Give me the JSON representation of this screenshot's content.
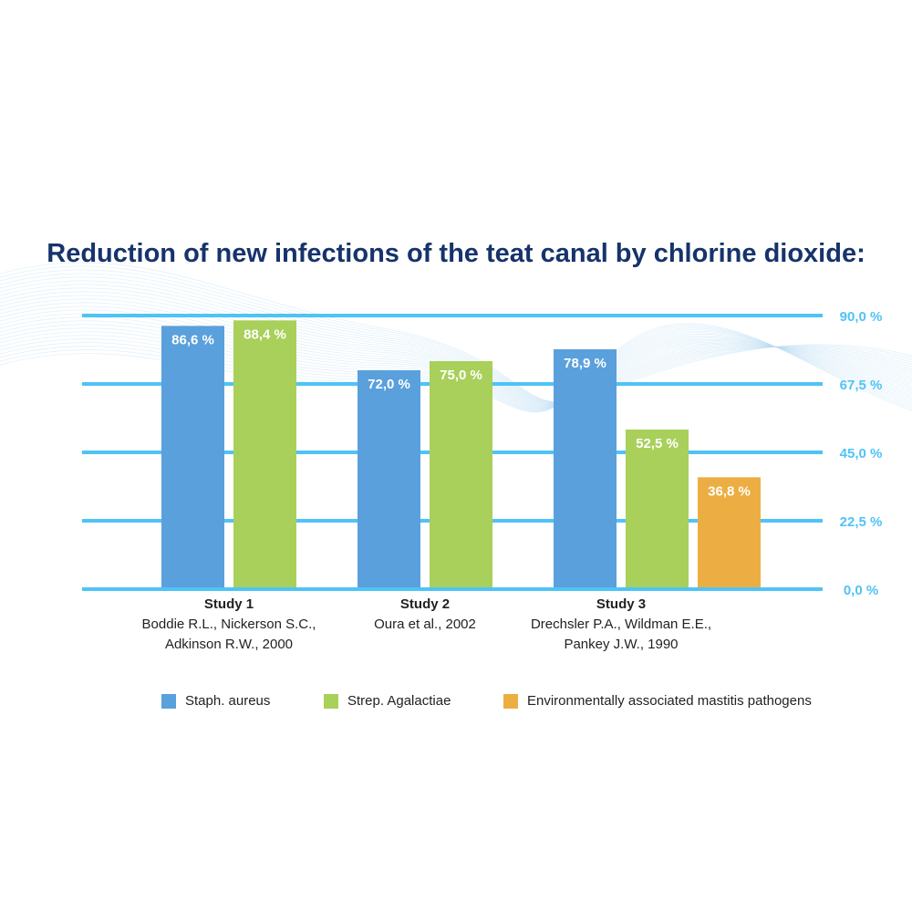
{
  "chart_data": {
    "type": "bar",
    "title": "Reduction of new infections of the teat canal by chlorine dioxide:",
    "ylim": [
      0,
      90
    ],
    "yticks": [
      "0,0 %",
      "22,5 %",
      "45,0 %",
      "67,5 %",
      "90,0 %"
    ],
    "grid": true,
    "legend_position": "bottom",
    "groups": [
      {
        "name": "Study 1",
        "citation": [
          "Boddie R.L., Nickerson S.C.,",
          "Adkinson R.W., 2000"
        ],
        "bars": [
          {
            "series": "Staph. aureus",
            "value": 86.6,
            "label": "86,6 %"
          },
          {
            "series": "Strep. Agalactiae",
            "value": 88.4,
            "label": "88,4 %"
          }
        ]
      },
      {
        "name": "Study 2",
        "citation": [
          "Oura et al., 2002"
        ],
        "bars": [
          {
            "series": "Staph. aureus",
            "value": 72.0,
            "label": "72,0 %"
          },
          {
            "series": "Strep. Agalactiae",
            "value": 75.0,
            "label": "75,0 %"
          }
        ]
      },
      {
        "name": "Study 3",
        "citation": [
          "Drechsler P.A., Wildman E.E.,",
          "Pankey J.W., 1990"
        ],
        "bars": [
          {
            "series": "Staph. aureus",
            "value": 78.9,
            "label": "78,9 %"
          },
          {
            "series": "Strep. Agalactiae",
            "value": 52.5,
            "label": "52,5 %"
          },
          {
            "series": "Environmentally associated mastitis pathogens",
            "value": 36.8,
            "label": "36,8 %"
          }
        ]
      }
    ],
    "series": [
      {
        "name": "Staph. aureus",
        "color": "#5aa0dc"
      },
      {
        "name": "Strep. Agalactiae",
        "color": "#a8d05a"
      },
      {
        "name": "Environmentally associated mastitis pathogens",
        "color": "#ecae42"
      }
    ]
  },
  "colors": {
    "title": "#16336b",
    "gridline": "#4fc3f7",
    "tick_label": "#4fc3f7",
    "bar_label": "#ffffff",
    "text": "#222222"
  }
}
